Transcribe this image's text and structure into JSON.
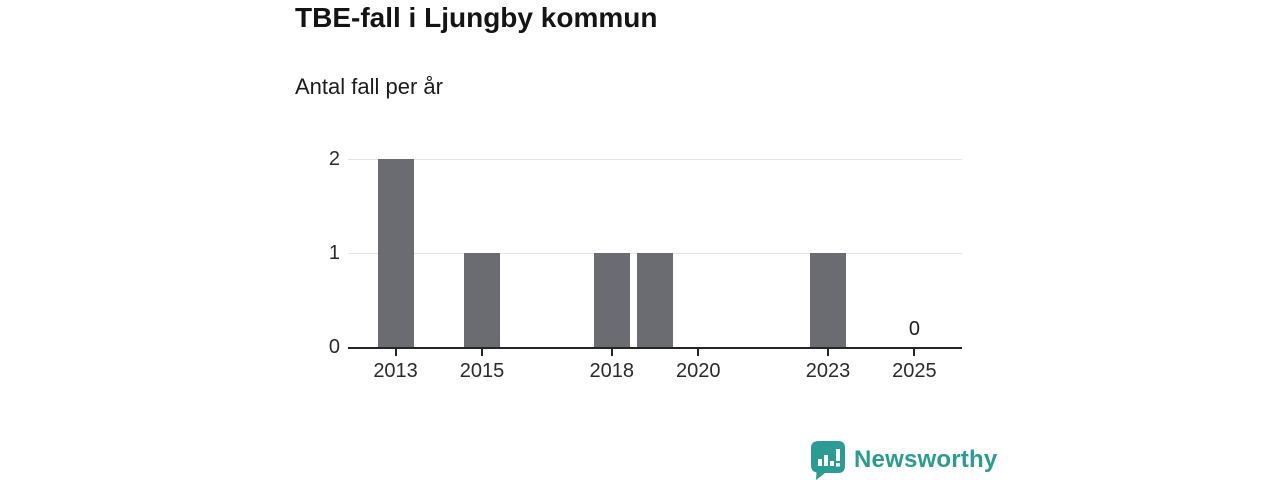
{
  "header": {
    "title": "TBE-fall i Ljungby kommun",
    "subtitle": "Antal fall per år"
  },
  "branding": {
    "logo_text": "Newsworthy",
    "brand_color": "#2a9c94",
    "logo_icon": "speech-bubble-bar-chart-icon"
  },
  "chart_data": {
    "type": "bar",
    "title": "TBE-fall i Ljungby kommun",
    "ylabel": "Antal fall per år",
    "xlabel": "",
    "x": [
      2013,
      2014,
      2015,
      2016,
      2017,
      2018,
      2019,
      2020,
      2021,
      2022,
      2023,
      2024,
      2025
    ],
    "values": [
      2,
      0,
      1,
      0,
      0,
      1,
      1,
      0,
      0,
      0,
      1,
      0,
      0
    ],
    "x_ticks": [
      2013,
      2015,
      2018,
      2020,
      2023,
      2025
    ],
    "x_tick_labels": [
      "2013",
      "2015",
      "2018",
      "2020",
      "2023",
      "2025"
    ],
    "y_ticks": [
      0,
      1,
      2
    ],
    "y_tick_labels": [
      "0",
      "1",
      "2"
    ],
    "value_labels": [
      {
        "x": 2025,
        "text": "0"
      }
    ],
    "xlim": [
      2011.9,
      2026.1
    ],
    "ylim": [
      0,
      2.15
    ],
    "grid": true,
    "legend": false,
    "bar_color": "#6b6b72",
    "grid_color": "#e4e4e4",
    "axis_color": "#262626"
  }
}
